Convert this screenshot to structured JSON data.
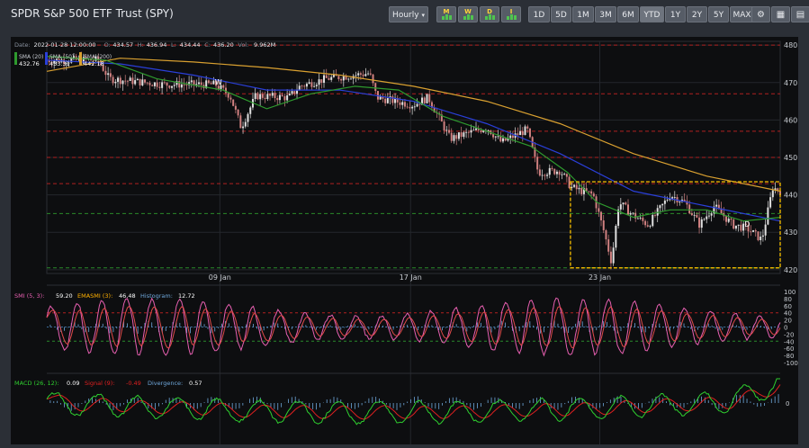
{
  "title": "SPDR S&P 500 ETF Trust (SPY)",
  "toolbar": {
    "interval": "Hourly",
    "interval_caret": "▾",
    "indicator_buttons": [
      {
        "label": "M",
        "name": "monthly-indicator-button"
      },
      {
        "label": "W",
        "name": "weekly-indicator-button"
      },
      {
        "label": "D",
        "name": "daily-indicator-button"
      },
      {
        "label": "I",
        "name": "intraday-indicator-button"
      }
    ],
    "ranges": [
      "1D",
      "5D",
      "1M",
      "3M",
      "6M",
      "YTD",
      "1Y",
      "2Y",
      "5Y",
      "MAX"
    ],
    "active_range": "YTD",
    "icons": [
      "gear-icon",
      "calculator-icon",
      "table-icon"
    ]
  },
  "colors": {
    "background": "#0d0e10",
    "up": "#e0e0e0",
    "down": "#d08080",
    "sma20": "#2e9a2e",
    "sma50": "#2a3fd8",
    "sma200": "#d9a030",
    "smi": "#e65fb0",
    "emasmi": "#e04a4a",
    "macd": "#2fcf2f",
    "signal": "#e02020",
    "histogram": "#6fa8dc",
    "box": "#e8b300"
  },
  "chart_data": [
    {
      "type": "candlestick",
      "info": {
        "date_label": "Date:",
        "date": "2022-01-28 12:00:00",
        "o_label": "O:",
        "o": "434.57",
        "h_label": "H:",
        "h": "436.94",
        "l_label": "L:",
        "l": "434.44",
        "c_label": "C:",
        "c": "436.20",
        "v_label": "Vol:",
        "v": "9.962M"
      },
      "legend": [
        {
          "label": "SMA (20)",
          "value": "432.76"
        },
        {
          "label": "SMA (50)",
          "value": "433.31"
        },
        {
          "label": "SMA (200)",
          "value": "442.18"
        }
      ],
      "ylim": [
        419,
        481
      ],
      "yticks": [
        420,
        430,
        440,
        450,
        460,
        470,
        480
      ],
      "xticks": [
        {
          "label": "09 Jan",
          "at": 0.236
        },
        {
          "label": "17 Jan",
          "at": 0.496
        },
        {
          "label": "23 Jan",
          "at": 0.754
        }
      ],
      "levels": [
        {
          "y": 480,
          "color": "#b02020"
        },
        {
          "y": 467,
          "color": "#b02020"
        },
        {
          "y": 457,
          "color": "#b02020"
        },
        {
          "y": 450,
          "color": "#b02020"
        },
        {
          "y": 443,
          "color": "#b02020"
        },
        {
          "y": 435,
          "color": "#2a8a2a"
        },
        {
          "y": 420.5,
          "color": "#2a8a2a"
        }
      ],
      "labels": [
        {
          "text": "W",
          "x": 0.234,
          "y": 469.5
        },
        {
          "text": "D",
          "x": 0.955,
          "y": 431.5
        }
      ],
      "box": {
        "x0": 0.714,
        "x1": 1.0,
        "y0": 420.5,
        "y1": 443.5
      },
      "path": [
        [
          0,
          476
        ],
        [
          0.07,
          476
        ],
        [
          0.085,
          471
        ],
        [
          0.16,
          469.5
        ],
        [
          0.23,
          469.5
        ],
        [
          0.25,
          466.5
        ],
        [
          0.265,
          458
        ],
        [
          0.285,
          466.5
        ],
        [
          0.33,
          466
        ],
        [
          0.345,
          469
        ],
        [
          0.38,
          471
        ],
        [
          0.44,
          472.5
        ],
        [
          0.45,
          466
        ],
        [
          0.5,
          464
        ],
        [
          0.52,
          466
        ],
        [
          0.55,
          455
        ],
        [
          0.6,
          458
        ],
        [
          0.62,
          454
        ],
        [
          0.655,
          457.5
        ],
        [
          0.67,
          446
        ],
        [
          0.7,
          446.5
        ],
        [
          0.715,
          442
        ],
        [
          0.745,
          440
        ],
        [
          0.76,
          430
        ],
        [
          0.77,
          422
        ],
        [
          0.78,
          438
        ],
        [
          0.8,
          434.5
        ],
        [
          0.82,
          432
        ],
        [
          0.85,
          440
        ],
        [
          0.87,
          438
        ],
        [
          0.89,
          432
        ],
        [
          0.91,
          437
        ],
        [
          0.935,
          432
        ],
        [
          0.955,
          431
        ],
        [
          0.975,
          428
        ],
        [
          0.99,
          442
        ],
        [
          1.0,
          441
        ]
      ],
      "sma20": [
        [
          0,
          477
        ],
        [
          0.08,
          476
        ],
        [
          0.15,
          471
        ],
        [
          0.24,
          468
        ],
        [
          0.3,
          463
        ],
        [
          0.36,
          467
        ],
        [
          0.42,
          469
        ],
        [
          0.48,
          468
        ],
        [
          0.54,
          461
        ],
        [
          0.6,
          457
        ],
        [
          0.66,
          453
        ],
        [
          0.71,
          446
        ],
        [
          0.75,
          438
        ],
        [
          0.8,
          434
        ],
        [
          0.85,
          436
        ],
        [
          0.9,
          436
        ],
        [
          0.95,
          433
        ],
        [
          1.0,
          434
        ]
      ],
      "sma50": [
        [
          0,
          476
        ],
        [
          0.1,
          475
        ],
        [
          0.2,
          472
        ],
        [
          0.3,
          468
        ],
        [
          0.4,
          468
        ],
        [
          0.5,
          465
        ],
        [
          0.6,
          459
        ],
        [
          0.7,
          451
        ],
        [
          0.8,
          441
        ],
        [
          0.9,
          437
        ],
        [
          1.0,
          433
        ]
      ],
      "sma200": [
        [
          0,
          473
        ],
        [
          0.1,
          476.5
        ],
        [
          0.2,
          475.5
        ],
        [
          0.3,
          474
        ],
        [
          0.4,
          472
        ],
        [
          0.5,
          469
        ],
        [
          0.6,
          465
        ],
        [
          0.7,
          459
        ],
        [
          0.8,
          451
        ],
        [
          0.9,
          445
        ],
        [
          1.0,
          441
        ]
      ]
    },
    {
      "type": "line",
      "legend": [
        {
          "label": "SMI (5, 3):",
          "value": "59.20"
        },
        {
          "label": "EMASMI (3):",
          "value": "46.48"
        },
        {
          "label": "Histogram:",
          "value": "12.72"
        }
      ],
      "ylim": [
        -100,
        100
      ],
      "yticks": [
        100,
        80,
        60,
        40,
        20,
        0,
        -20,
        -40,
        -60,
        -80,
        -100
      ],
      "guides": [
        {
          "y": 40,
          "color": "#b02020"
        },
        {
          "y": -40,
          "color": "#2a8a2a"
        }
      ],
      "cycles": 29,
      "amplitude": 80
    },
    {
      "type": "line",
      "legend": [
        {
          "label": "MACD (26, 12):",
          "value": "0.09"
        },
        {
          "label": "Signal (9):",
          "value": "-0.49"
        },
        {
          "label": "Divergence:",
          "value": "0.57"
        }
      ],
      "yticks": [
        0
      ]
    }
  ]
}
